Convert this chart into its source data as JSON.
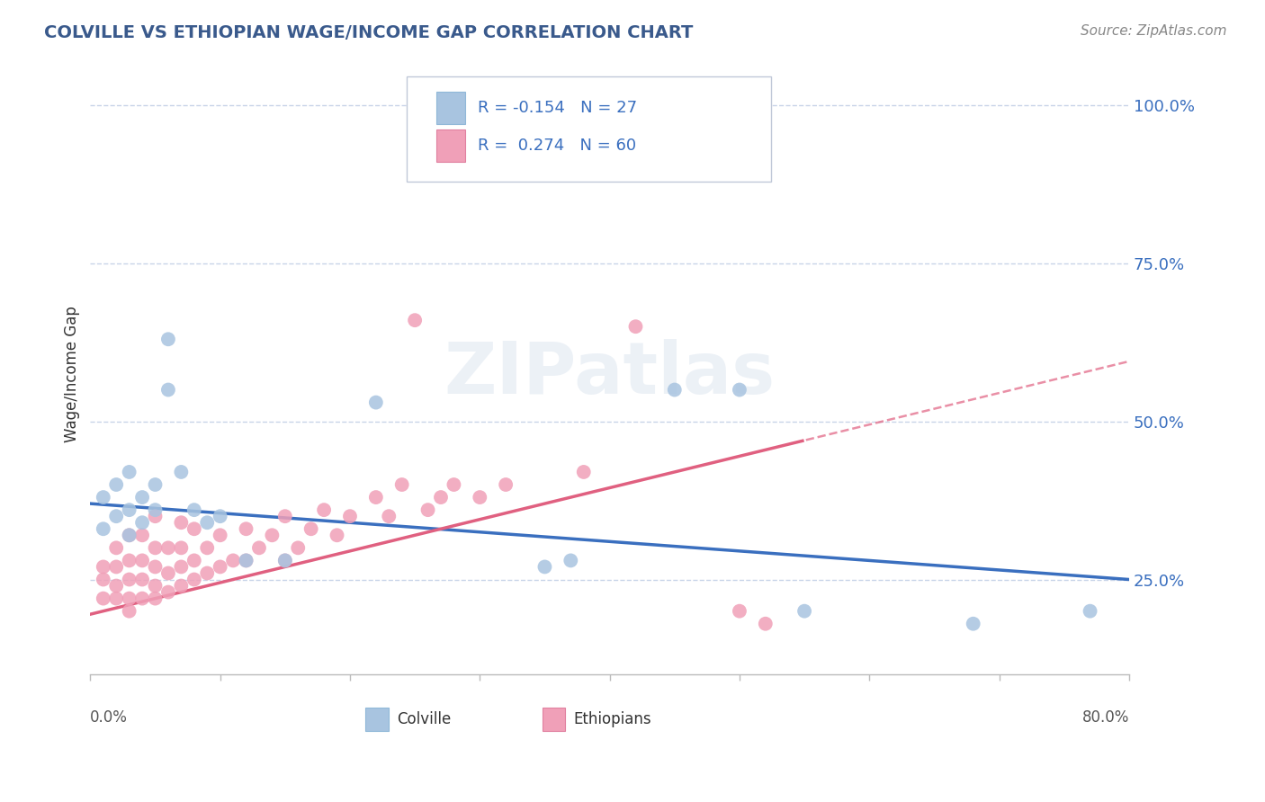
{
  "title": "COLVILLE VS ETHIOPIAN WAGE/INCOME GAP CORRELATION CHART",
  "source": "Source: ZipAtlas.com",
  "ylabel": "Wage/Income Gap",
  "right_yticks": [
    "25.0%",
    "50.0%",
    "75.0%",
    "100.0%"
  ],
  "right_ytick_vals": [
    0.25,
    0.5,
    0.75,
    1.0
  ],
  "legend_label1": "Colville",
  "legend_label2": "Ethiopians",
  "R1": -0.154,
  "N1": 27,
  "R2": 0.274,
  "N2": 60,
  "color1": "#a8c4e0",
  "color2": "#f0a0b8",
  "trendline_color1": "#3a6fbf",
  "trendline_color2": "#e06080",
  "title_color": "#3a5a8c",
  "source_color": "#888888",
  "background_color": "#ffffff",
  "grid_color": "#c8d4e8",
  "xmin": 0.0,
  "xmax": 0.8,
  "ymin": 0.1,
  "ymax": 1.05,
  "colville_x": [
    0.01,
    0.01,
    0.02,
    0.02,
    0.03,
    0.03,
    0.03,
    0.04,
    0.04,
    0.05,
    0.05,
    0.06,
    0.06,
    0.07,
    0.08,
    0.09,
    0.1,
    0.12,
    0.15,
    0.22,
    0.35,
    0.37,
    0.45,
    0.5,
    0.55,
    0.68,
    0.77
  ],
  "colville_y": [
    0.33,
    0.38,
    0.35,
    0.4,
    0.32,
    0.36,
    0.42,
    0.34,
    0.38,
    0.36,
    0.4,
    0.63,
    0.55,
    0.42,
    0.36,
    0.34,
    0.35,
    0.28,
    0.28,
    0.53,
    0.27,
    0.28,
    0.55,
    0.55,
    0.2,
    0.18,
    0.2
  ],
  "ethiopian_x": [
    0.01,
    0.01,
    0.01,
    0.02,
    0.02,
    0.02,
    0.02,
    0.03,
    0.03,
    0.03,
    0.03,
    0.03,
    0.04,
    0.04,
    0.04,
    0.04,
    0.05,
    0.05,
    0.05,
    0.05,
    0.05,
    0.06,
    0.06,
    0.06,
    0.07,
    0.07,
    0.07,
    0.07,
    0.08,
    0.08,
    0.08,
    0.09,
    0.09,
    0.1,
    0.1,
    0.11,
    0.12,
    0.12,
    0.13,
    0.14,
    0.15,
    0.15,
    0.16,
    0.17,
    0.18,
    0.19,
    0.2,
    0.22,
    0.23,
    0.24,
    0.25,
    0.26,
    0.27,
    0.28,
    0.3,
    0.32,
    0.38,
    0.42,
    0.5,
    0.52
  ],
  "ethiopian_y": [
    0.22,
    0.25,
    0.27,
    0.22,
    0.24,
    0.27,
    0.3,
    0.2,
    0.22,
    0.25,
    0.28,
    0.32,
    0.22,
    0.25,
    0.28,
    0.32,
    0.22,
    0.24,
    0.27,
    0.3,
    0.35,
    0.23,
    0.26,
    0.3,
    0.24,
    0.27,
    0.3,
    0.34,
    0.25,
    0.28,
    0.33,
    0.26,
    0.3,
    0.27,
    0.32,
    0.28,
    0.28,
    0.33,
    0.3,
    0.32,
    0.28,
    0.35,
    0.3,
    0.33,
    0.36,
    0.32,
    0.35,
    0.38,
    0.35,
    0.4,
    0.66,
    0.36,
    0.38,
    0.4,
    0.38,
    0.4,
    0.42,
    0.65,
    0.2,
    0.18
  ]
}
